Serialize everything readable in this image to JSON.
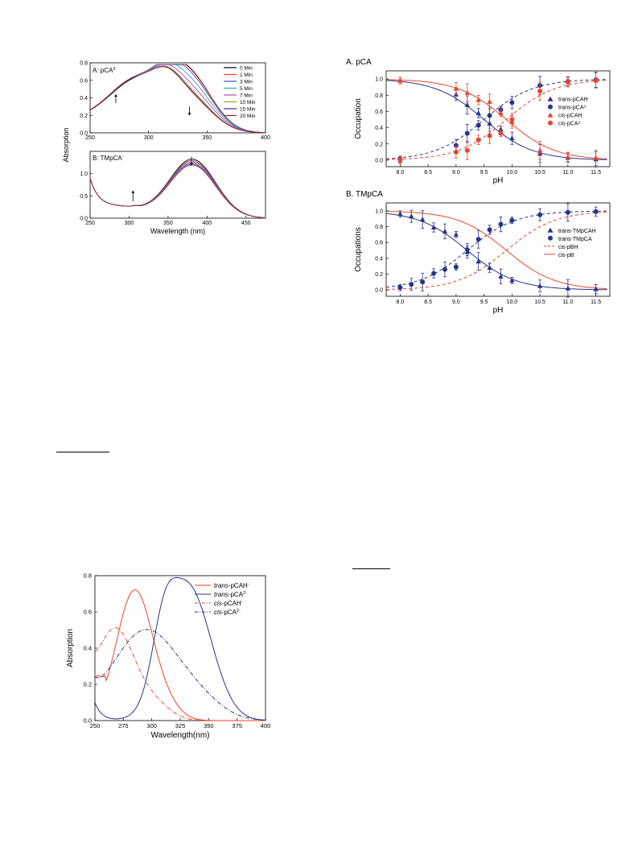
{
  "page": {
    "rule_marks": 2
  },
  "chart_data": [
    {
      "id": "fig1A",
      "type": "line",
      "panel_label": "A: pCA",
      "panel_label_sup": "2-",
      "xlabel": "",
      "ylabel": "Absorption",
      "xlim": [
        250,
        400
      ],
      "ylim": [
        0,
        0.8
      ],
      "xticks": [
        250,
        300,
        350,
        400
      ],
      "yticks": [
        0.0,
        0.2,
        0.4,
        0.6,
        0.8
      ],
      "legend": "top-right",
      "arrows": [
        {
          "x": 272,
          "direction": "up"
        },
        {
          "x": 335,
          "direction": "down"
        }
      ],
      "series": [
        {
          "name": "0 Min",
          "color": "#000000",
          "peak1": 0.47,
          "peak2": 0.64
        },
        {
          "name": "1 Min",
          "color": "#e8452c",
          "peak1": 0.48,
          "peak2": 0.63
        },
        {
          "name": "3 Min",
          "color": "#2c4fc8",
          "peak1": 0.48,
          "peak2": 0.6
        },
        {
          "name": "5 Min",
          "color": "#2aa6a6",
          "peak1": 0.49,
          "peak2": 0.53
        },
        {
          "name": "7 Min",
          "color": "#c040c0",
          "peak1": 0.49,
          "peak2": 0.46
        },
        {
          "name": "10 Min",
          "color": "#a0a020",
          "peak1": 0.49,
          "peak2": 0.4
        },
        {
          "name": "15 Min",
          "color": "#3a2a90",
          "peak1": 0.49,
          "peak2": 0.38
        },
        {
          "name": "20 Min",
          "color": "#9a2a2a",
          "peak1": 0.49,
          "peak2": 0.37
        }
      ]
    },
    {
      "id": "fig1B",
      "type": "line",
      "panel_label": "B: TMpCA",
      "panel_label_sup": "-",
      "xlabel": "Wavelength (nm)",
      "ylabel": "",
      "xlim": [
        250,
        475
      ],
      "ylim": [
        0,
        1.5
      ],
      "xticks": [
        250,
        300,
        350,
        400,
        450
      ],
      "yticks": [
        0.0,
        0.5,
        1.0
      ],
      "arrows": [
        {
          "x": 305,
          "direction": "up"
        },
        {
          "x": 380,
          "direction": "down"
        }
      ],
      "series_peaks": [
        1.32,
        1.29,
        1.26,
        1.23,
        1.21,
        1.19
      ],
      "series_colors": [
        "#000000",
        "#e8452c",
        "#2c4fc8",
        "#2aa6a6",
        "#c040c0",
        "#9a2a2a"
      ]
    },
    {
      "id": "fig2A",
      "type": "scatter",
      "panel_title": "A. pCA",
      "xlabel": "pH",
      "ylabel": "Occupation",
      "xlim": [
        7.75,
        11.75
      ],
      "ylim": [
        -0.08,
        1.1
      ],
      "xticks": [
        "8.0",
        "8.5",
        "9.0",
        "9.5",
        "10.0",
        "10.5",
        "11.0",
        "11.5"
      ],
      "yticks": [
        "0.0",
        "0.2",
        "0.4",
        "0.6",
        "0.8",
        "1.0"
      ],
      "legend": "right",
      "pka_blue": 9.5,
      "pka_red": 9.9,
      "series": [
        {
          "name": "trans-pCAH",
          "sup": "-",
          "color": "#27348b",
          "marker": "triangle",
          "style": "solid",
          "x": [
            8.0,
            9.0,
            9.2,
            9.4,
            9.6,
            9.8,
            10.0,
            10.5,
            11.0,
            11.5
          ],
          "y": [
            0.98,
            0.81,
            0.68,
            0.58,
            0.45,
            0.38,
            0.27,
            0.08,
            0.03,
            0.01
          ]
        },
        {
          "name": "trans-pCA",
          "sup": "2-",
          "color": "#27348b",
          "marker": "circle",
          "style": "dashed",
          "x": [
            8.0,
            9.0,
            9.2,
            9.4,
            9.6,
            9.8,
            10.0,
            10.5,
            11.0,
            11.5
          ],
          "y": [
            0.01,
            0.18,
            0.33,
            0.43,
            0.55,
            0.62,
            0.71,
            0.92,
            0.97,
            0.99
          ]
        },
        {
          "name": "cis-pCAH",
          "sup": "-",
          "color": "#e8452c",
          "marker": "triangle",
          "style": "solid",
          "x": [
            8.0,
            9.0,
            9.2,
            9.4,
            9.6,
            9.8,
            10.0,
            10.5,
            11.0,
            11.5
          ],
          "y": [
            0.98,
            0.88,
            0.83,
            0.74,
            0.72,
            0.58,
            0.47,
            0.12,
            0.04,
            0.03
          ]
        },
        {
          "name": "cis-pCA",
          "sup": "2-",
          "color": "#e8452c",
          "marker": "circle",
          "style": "dashed",
          "x": [
            8.0,
            9.0,
            9.2,
            9.4,
            9.6,
            9.8,
            10.0,
            10.5,
            11.0,
            11.5
          ],
          "y": [
            0.0,
            0.1,
            0.12,
            0.25,
            0.3,
            0.33,
            0.5,
            0.85,
            0.96,
            0.98
          ]
        }
      ]
    },
    {
      "id": "fig2B",
      "type": "scatter",
      "panel_title": "B. TMpCA",
      "xlabel": "pH",
      "ylabel": "Occupations",
      "xlim": [
        7.75,
        11.75
      ],
      "ylim": [
        -0.08,
        1.1
      ],
      "xticks": [
        "8.0",
        "8.5",
        "9.0",
        "9.5",
        "10.0",
        "10.5",
        "11.0",
        "11.5"
      ],
      "yticks": [
        "0.0",
        "0.2",
        "0.4",
        "0.6",
        "0.8",
        "1.0"
      ],
      "legend": "right",
      "pka_blue": 9.2,
      "pka_red": 9.9,
      "series": [
        {
          "name": "trans-TMpCAH",
          "color": "#27348b",
          "marker": "triangle",
          "style": "solid",
          "x": [
            8.0,
            8.2,
            8.4,
            8.6,
            8.8,
            9.0,
            9.2,
            9.4,
            9.6,
            9.8,
            10.0,
            10.5,
            11.0,
            11.5
          ],
          "y": [
            0.96,
            0.93,
            0.89,
            0.79,
            0.74,
            0.7,
            0.48,
            0.36,
            0.28,
            0.17,
            0.12,
            0.05,
            0.02,
            0.01
          ]
        },
        {
          "name": "trans-TMpCA",
          "color": "#27348b",
          "marker": "circle",
          "style": "dashed",
          "x": [
            8.0,
            8.2,
            8.4,
            8.6,
            8.8,
            9.0,
            9.2,
            9.4,
            9.6,
            9.8,
            10.0,
            10.5,
            11.0,
            11.5
          ],
          "y": [
            0.03,
            0.07,
            0.1,
            0.21,
            0.26,
            0.29,
            0.51,
            0.64,
            0.76,
            0.83,
            0.88,
            0.95,
            0.98,
            0.99
          ]
        },
        {
          "name": "cis-pBH",
          "color": "#e8452c",
          "marker": "none",
          "style": "dashed"
        },
        {
          "name": "cis-pB",
          "sup": "-",
          "color": "#e8452c",
          "marker": "none",
          "style": "solid"
        }
      ]
    },
    {
      "id": "fig3",
      "type": "line",
      "xlabel": "Wavelength(nm)",
      "ylabel": "Absorption",
      "xlim": [
        250,
        400
      ],
      "ylim": [
        0,
        0.8
      ],
      "xticks": [
        250,
        275,
        300,
        325,
        350,
        375,
        400
      ],
      "yticks": [
        "0.0",
        "0.2",
        "0.4",
        "0.6",
        "0.8"
      ],
      "legend": "top-right",
      "series": [
        {
          "name_italic": "trans",
          "name_rest": "-pCAH",
          "sup": "-",
          "color": "#e8452c",
          "style": "solid"
        },
        {
          "name_italic": "trans",
          "name_rest": "-pCA",
          "sup": "2-",
          "color": "#27348b",
          "style": "solid"
        },
        {
          "name_italic": "cis",
          "name_rest": "-pCAH",
          "sup": "-",
          "color": "#e8452c",
          "style": "dashdot"
        },
        {
          "name_italic": "cis",
          "name_rest": "-pCA",
          "sup": "2-",
          "color": "#27348b",
          "style": "dashdot"
        }
      ],
      "peaks": [
        {
          "series": "trans-pCAH",
          "x": 285,
          "y": 0.72
        },
        {
          "series": "trans-pCA",
          "x": 332,
          "y": 0.74
        },
        {
          "series": "cis-pCAH",
          "x": 268,
          "y": 0.49
        },
        {
          "series": "cis-pCA",
          "x": 295,
          "y": 0.5
        }
      ]
    }
  ]
}
